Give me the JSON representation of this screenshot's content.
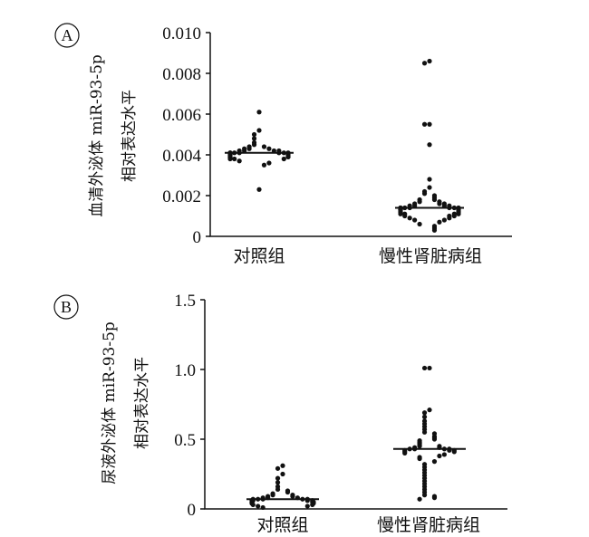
{
  "chart_data": [
    {
      "type": "scatter",
      "panel_label": "A",
      "ylabel": [
        "血清外泌体 miR-93-5p",
        "相对表达水平"
      ],
      "ylim": [
        0,
        0.01
      ],
      "yticks": [
        "0",
        "0.002",
        "0.004",
        "0.006",
        "0.008",
        "0.010"
      ],
      "ytick_values": [
        0,
        0.002,
        0.004,
        0.006,
        0.008,
        0.01
      ],
      "categories": [
        "对照组",
        "慢性肾脏病组"
      ],
      "groups": [
        {
          "name": "对照组",
          "center": 0.0041,
          "values": [
            0.0061,
            0.0052,
            0.005,
            0.0048,
            0.0046,
            0.0045,
            0.0044,
            0.0044,
            0.0043,
            0.0043,
            0.0043,
            0.0042,
            0.0042,
            0.0042,
            0.0042,
            0.0041,
            0.0041,
            0.0041,
            0.0041,
            0.0041,
            0.0041,
            0.0041,
            0.004,
            0.004,
            0.004,
            0.004,
            0.004,
            0.0039,
            0.0039,
            0.0039,
            0.0039,
            0.0038,
            0.0038,
            0.0038,
            0.0037,
            0.0036,
            0.0035,
            0.0023
          ]
        },
        {
          "name": "慢性肾脏病组",
          "center": 0.0014,
          "values": [
            0.0086,
            0.0085,
            0.0055,
            0.0055,
            0.0045,
            0.0028,
            0.0024,
            0.0022,
            0.0021,
            0.002,
            0.0019,
            0.0018,
            0.0018,
            0.0017,
            0.0017,
            0.0016,
            0.0016,
            0.0016,
            0.0015,
            0.0015,
            0.0015,
            0.0015,
            0.0014,
            0.0014,
            0.0014,
            0.0014,
            0.0014,
            0.0014,
            0.0014,
            0.0013,
            0.0013,
            0.0013,
            0.0013,
            0.0013,
            0.0012,
            0.0012,
            0.0012,
            0.0012,
            0.0011,
            0.0011,
            0.0011,
            0.0011,
            0.001,
            0.001,
            0.001,
            0.0009,
            0.0009,
            0.0008,
            0.0008,
            0.0007,
            0.0006,
            0.0005,
            0.0004,
            0.0003
          ]
        }
      ]
    },
    {
      "type": "scatter",
      "panel_label": "B",
      "ylabel": [
        "尿液外泌体 miR-93-5p",
        "相对表达水平"
      ],
      "ylim": [
        0,
        1.5
      ],
      "yticks": [
        "0",
        "0.5",
        "1.0",
        "1.5"
      ],
      "ytick_values": [
        0,
        0.5,
        1.0,
        1.5
      ],
      "categories": [
        "对照组",
        "慢性肾脏病组"
      ],
      "groups": [
        {
          "name": "对照组",
          "center": 0.07,
          "values": [
            0.31,
            0.29,
            0.25,
            0.22,
            0.19,
            0.16,
            0.14,
            0.13,
            0.12,
            0.11,
            0.1,
            0.1,
            0.09,
            0.09,
            0.08,
            0.08,
            0.08,
            0.07,
            0.07,
            0.07,
            0.07,
            0.07,
            0.06,
            0.06,
            0.06,
            0.06,
            0.05,
            0.05,
            0.05,
            0.05,
            0.04,
            0.04,
            0.04,
            0.03,
            0.03,
            0.02,
            0.02,
            0.01
          ]
        },
        {
          "name": "慢性肾脏病组",
          "center": 0.43,
          "values": [
            1.01,
            1.01,
            0.71,
            0.69,
            0.66,
            0.63,
            0.61,
            0.59,
            0.57,
            0.55,
            0.54,
            0.52,
            0.51,
            0.5,
            0.49,
            0.48,
            0.47,
            0.46,
            0.45,
            0.45,
            0.44,
            0.44,
            0.43,
            0.43,
            0.43,
            0.43,
            0.42,
            0.42,
            0.42,
            0.41,
            0.41,
            0.4,
            0.39,
            0.38,
            0.37,
            0.36,
            0.34,
            0.32,
            0.3,
            0.28,
            0.26,
            0.24,
            0.22,
            0.2,
            0.18,
            0.16,
            0.14,
            0.12,
            0.1,
            0.09,
            0.08,
            0.07
          ]
        }
      ]
    }
  ]
}
